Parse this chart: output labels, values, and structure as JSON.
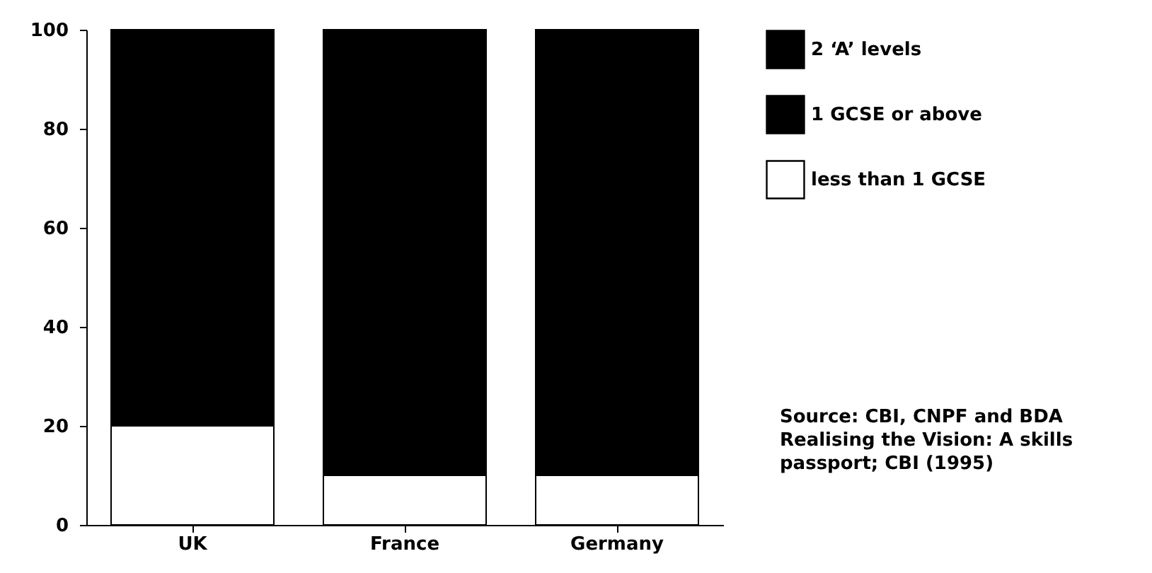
{
  "chart_data": {
    "type": "bar",
    "stacked": true,
    "categories": [
      "UK",
      "France",
      "Germany"
    ],
    "series": [
      {
        "name": "less than 1 GCSE",
        "color": "#ffffff",
        "values": [
          20,
          10,
          10
        ]
      },
      {
        "name": "1 GCSE or above",
        "color": "#000000",
        "values": [
          80,
          90,
          90
        ]
      },
      {
        "name": "2 ‘A’ levels",
        "color": "#000000",
        "values": [
          null,
          null,
          null
        ]
      }
    ],
    "ylim": [
      0,
      100
    ],
    "yticks": [
      0,
      20,
      40,
      60,
      80,
      100
    ],
    "grid": false,
    "legend": "top right",
    "annotations": [
      "Source:  CBI, CNPF and BDA",
      "Realising the Vision: A skills",
      "passport; CBI (1995)"
    ]
  }
}
